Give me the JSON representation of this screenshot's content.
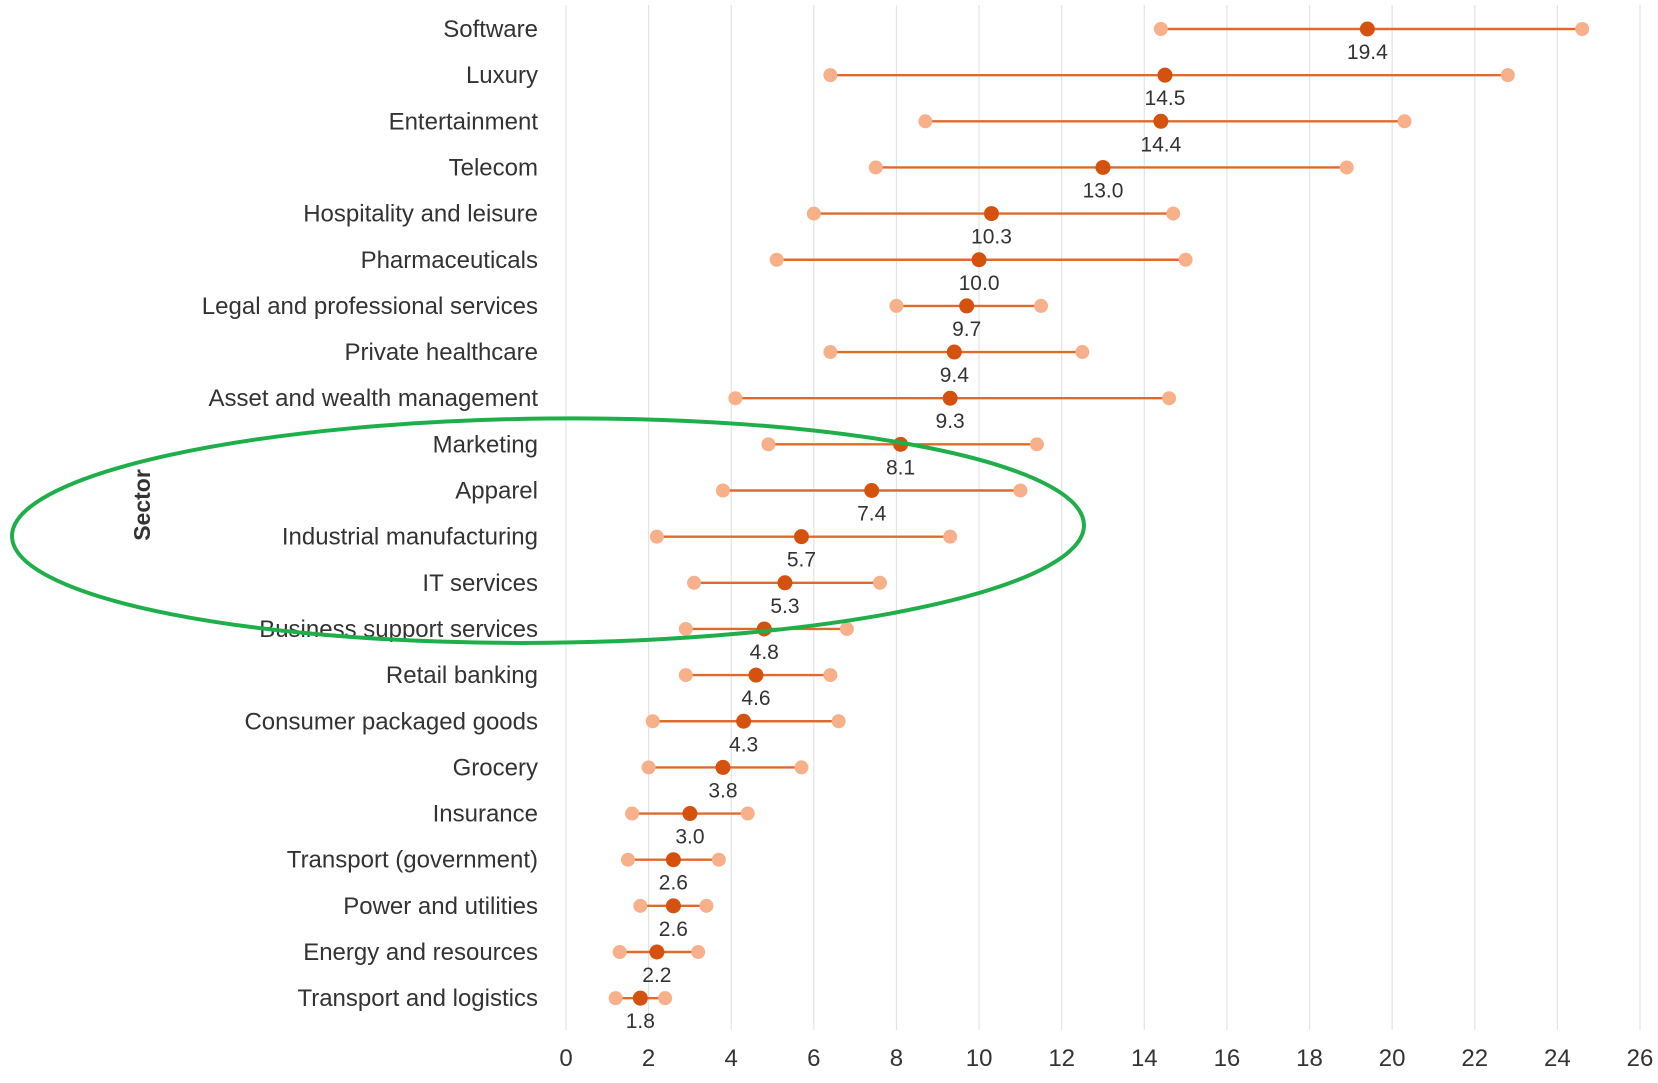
{
  "chart_data": {
    "type": "dumbbell",
    "title": "",
    "xlabel": "",
    "ylabel": "Sector",
    "xlim": [
      0,
      26
    ],
    "xticks": [
      0,
      2,
      4,
      6,
      8,
      10,
      12,
      14,
      16,
      18,
      20,
      22,
      24,
      26
    ],
    "grid": "vertical",
    "colors": {
      "median": "#D4520E",
      "range_end": "#F7B08A",
      "line": "#E06A2C",
      "grid": "#E4E4E4",
      "annotation": "#1FAF4A",
      "label": "#333333"
    },
    "annotation": {
      "type": "ellipse",
      "highlighted_categories": [
        "Apparel",
        "Industrial manufacturing",
        "IT services"
      ]
    },
    "categories": [
      {
        "name": "Software",
        "low": 14.4,
        "median": 19.4,
        "high": 24.6,
        "label": "19.4"
      },
      {
        "name": "Luxury",
        "low": 6.4,
        "median": 14.5,
        "high": 22.8,
        "label": "14.5"
      },
      {
        "name": "Entertainment",
        "low": 8.7,
        "median": 14.4,
        "high": 20.3,
        "label": "14.4"
      },
      {
        "name": "Telecom",
        "low": 7.5,
        "median": 13.0,
        "high": 18.9,
        "label": "13.0"
      },
      {
        "name": "Hospitality and leisure",
        "low": 6.0,
        "median": 10.3,
        "high": 14.7,
        "label": "10.3"
      },
      {
        "name": "Pharmaceuticals",
        "low": 5.1,
        "median": 10.0,
        "high": 15.0,
        "label": "10.0"
      },
      {
        "name": "Legal and professional services",
        "low": 8.0,
        "median": 9.7,
        "high": 11.5,
        "label": "9.7"
      },
      {
        "name": "Private healthcare",
        "low": 6.4,
        "median": 9.4,
        "high": 12.5,
        "label": "9.4"
      },
      {
        "name": "Asset and wealth management",
        "low": 4.1,
        "median": 9.3,
        "high": 14.6,
        "label": "9.3"
      },
      {
        "name": "Marketing",
        "low": 4.9,
        "median": 8.1,
        "high": 11.4,
        "label": "8.1"
      },
      {
        "name": "Apparel",
        "low": 3.8,
        "median": 7.4,
        "high": 11.0,
        "label": "7.4"
      },
      {
        "name": "Industrial manufacturing",
        "low": 2.2,
        "median": 5.7,
        "high": 9.3,
        "label": "5.7"
      },
      {
        "name": "IT services",
        "low": 3.1,
        "median": 5.3,
        "high": 7.6,
        "label": "5.3"
      },
      {
        "name": "Business support services",
        "low": 2.9,
        "median": 4.8,
        "high": 6.8,
        "label": "4.8"
      },
      {
        "name": "Retail banking",
        "low": 2.9,
        "median": 4.6,
        "high": 6.4,
        "label": "4.6"
      },
      {
        "name": "Consumer packaged goods",
        "low": 2.1,
        "median": 4.3,
        "high": 6.6,
        "label": "4.3"
      },
      {
        "name": "Grocery",
        "low": 2.0,
        "median": 3.8,
        "high": 5.7,
        "label": "3.8"
      },
      {
        "name": "Insurance",
        "low": 1.6,
        "median": 3.0,
        "high": 4.4,
        "label": "3.0"
      },
      {
        "name": "Transport (government)",
        "low": 1.5,
        "median": 2.6,
        "high": 3.7,
        "label": "2.6"
      },
      {
        "name": "Power and utilities",
        "low": 1.8,
        "median": 2.6,
        "high": 3.4,
        "label": "2.6"
      },
      {
        "name": "Energy and resources",
        "low": 1.3,
        "median": 2.2,
        "high": 3.2,
        "label": "2.2"
      },
      {
        "name": "Transport and logistics",
        "low": 1.2,
        "median": 1.8,
        "high": 2.4,
        "label": "1.8"
      }
    ]
  }
}
